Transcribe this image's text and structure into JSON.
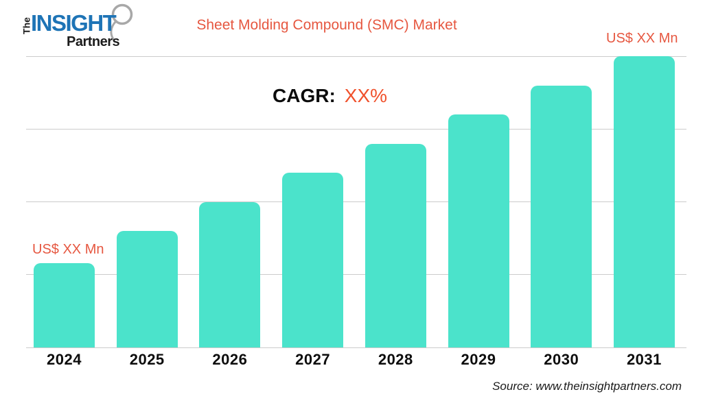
{
  "header": {
    "logo": {
      "word_the": "The",
      "word_insight": "INSIGHT",
      "word_partners": "Partners"
    },
    "title": "Sheet Molding Compound (SMC) Market"
  },
  "annotations": {
    "cagr_label": "CAGR:",
    "cagr_value": "XX%",
    "first_bar_value_label": "US$ XX Mn",
    "last_bar_value_label": "US$ XX Mn"
  },
  "footer": {
    "source_text": "Source: www.theinsightpartners.com"
  },
  "colors": {
    "bar": "#4BE3CB",
    "accent": "#E65740",
    "cagr_value": "#F0512C",
    "logo_blue": "#1E74B6",
    "logo_dark": "#1C1C1C",
    "gridline": "#CBCBCB",
    "axis_label": "#0D0D0D"
  },
  "chart_data": {
    "type": "bar",
    "title": "Sheet Molding Compound (SMC) Market",
    "categories": [
      "2024",
      "2025",
      "2026",
      "2027",
      "2028",
      "2029",
      "2030",
      "2031"
    ],
    "values": [
      29,
      40,
      50,
      60,
      70,
      80,
      90,
      100
    ],
    "xlabel": "",
    "ylabel": "",
    "ylim": [
      0,
      100
    ],
    "grid": true,
    "gridlines": 5,
    "legend": false,
    "annotations": [
      "CAGR: XX%",
      "US$ XX Mn (first bar)",
      "US$ XX Mn (last bar)"
    ]
  }
}
